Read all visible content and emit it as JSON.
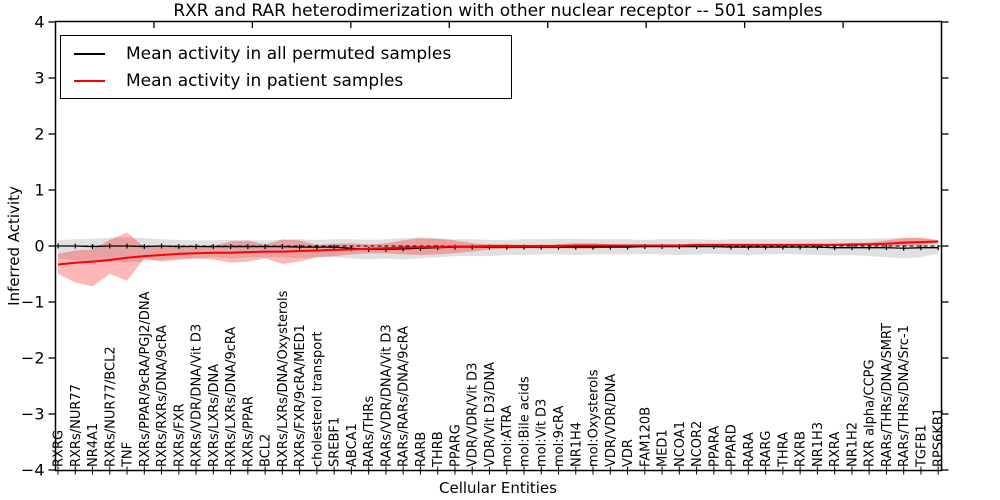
{
  "chart_data": {
    "type": "line",
    "title": "RXR and RAR heterodimerization with other nuclear receptor -- 501 samples",
    "xlabel": "Cellular Entities",
    "ylabel": "Inferred Activity",
    "ylim": [
      -4,
      4
    ],
    "grid": false,
    "legend_position": "upper left",
    "zero_line_style": "dashed",
    "ytick_values": [
      4,
      3,
      2,
      1,
      0,
      -1,
      -2,
      -3,
      -4
    ],
    "ytick_labels": [
      "4",
      "3",
      "2",
      "1",
      "0",
      "−1",
      "−2",
      "−3",
      "−4"
    ],
    "categories": [
      "RXRG",
      "RXRs/NUR77",
      "NR4A1",
      "RXRs/NUR77/BCL2",
      "TNF",
      "RXRs/PPAR/9cRA/PGJ2/DNA",
      "RXRs/RXRs/DNA/9cRA",
      "RXRs/FXR",
      "RXRs/VDR/DNA/Vit D3",
      "RXRs/LXRs/DNA",
      "RXRs/LXRs/DNA/9cRA",
      "RXRs/PPAR",
      "BCL2",
      "RXRs/LXRs/DNA/Oxysterols",
      "RXRs/FXR/9cRA/MED1",
      "cholesterol transport",
      "SREBF1",
      "ABCA1",
      "RARs/THRs",
      "RARs/VDR/DNA/Vit D3",
      "RARs/RARs/DNA/9cRA",
      "RARB",
      "THRB",
      "PPARG",
      "VDR/VDR/Vit D3",
      "VDR/Vit D3/DNA",
      "mol:ATRA",
      "mol:Bile acids",
      "mol:Vit D3",
      "mol:9cRA",
      "NR1H4",
      "mol:Oxysterols",
      "VDR/VDR/DNA",
      "VDR",
      "FAM120B",
      "MED1",
      "NCOA1",
      "NCOR2",
      "PPARA",
      "PPARD",
      "RARA",
      "RARG",
      "THRA",
      "RXRB",
      "NR1H3",
      "RXRA",
      "NR1H2",
      "RXR alpha/CCPG",
      "RARs/THRs/DNA/SMRT",
      "RARs/THRs/DNA/Src-1",
      "TGFB1",
      "RPS6KB1"
    ],
    "series": [
      {
        "name": "Mean activity in all permuted samples",
        "color": "#000000",
        "marker": "tick",
        "values": [
          0.0,
          0.0,
          -0.01,
          0.0,
          0.0,
          -0.01,
          0.0,
          -0.01,
          -0.01,
          -0.01,
          -0.01,
          -0.01,
          -0.01,
          -0.01,
          -0.02,
          -0.02,
          -0.02,
          -0.04,
          -0.06,
          -0.06,
          -0.05,
          -0.04,
          -0.03,
          -0.02,
          -0.02,
          -0.02,
          -0.02,
          -0.02,
          -0.02,
          -0.02,
          -0.02,
          -0.02,
          -0.02,
          -0.02,
          -0.01,
          -0.01,
          -0.01,
          -0.01,
          -0.01,
          -0.02,
          -0.02,
          -0.02,
          -0.02,
          -0.02,
          -0.02,
          -0.03,
          -0.03,
          -0.03,
          -0.03,
          -0.04,
          -0.03,
          -0.03
        ]
      },
      {
        "name": "Mean activity in patient samples",
        "color": "#ff0000",
        "marker": "none",
        "values": [
          -0.33,
          -0.3,
          -0.28,
          -0.25,
          -0.21,
          -0.18,
          -0.16,
          -0.14,
          -0.13,
          -0.12,
          -0.12,
          -0.11,
          -0.1,
          -0.1,
          -0.09,
          -0.08,
          -0.07,
          -0.06,
          -0.05,
          -0.04,
          -0.03,
          -0.02,
          -0.02,
          -0.01,
          -0.01,
          0.0,
          0.0,
          0.0,
          0.0,
          0.0,
          0.01,
          0.01,
          0.01,
          0.01,
          0.01,
          0.01,
          0.01,
          0.02,
          0.02,
          0.02,
          0.02,
          0.02,
          0.02,
          0.02,
          0.02,
          0.02,
          0.03,
          0.03,
          0.04,
          0.06,
          0.07,
          0.08
        ]
      }
    ],
    "bands": [
      {
        "name": "permuted-std-band",
        "color": "#000000",
        "opacity": 0.12,
        "upper": [
          0.1,
          0.12,
          0.13,
          0.15,
          0.15,
          0.14,
          0.12,
          0.11,
          0.1,
          0.1,
          0.11,
          0.1,
          0.1,
          0.11,
          0.12,
          0.11,
          0.12,
          0.12,
          0.11,
          0.12,
          0.14,
          0.15,
          0.14,
          0.12,
          0.12,
          0.11,
          0.11,
          0.12,
          0.12,
          0.13,
          0.13,
          0.12,
          0.12,
          0.12,
          0.11,
          0.12,
          0.12,
          0.12,
          0.11,
          0.12,
          0.12,
          0.12,
          0.12,
          0.12,
          0.12,
          0.13,
          0.13,
          0.13,
          0.14,
          0.15,
          0.14,
          0.1
        ],
        "lower": [
          -0.22,
          -0.26,
          -0.3,
          -0.28,
          -0.3,
          -0.28,
          -0.25,
          -0.22,
          -0.22,
          -0.2,
          -0.22,
          -0.2,
          -0.2,
          -0.2,
          -0.22,
          -0.2,
          -0.2,
          -0.22,
          -0.24,
          -0.22,
          -0.24,
          -0.22,
          -0.2,
          -0.18,
          -0.18,
          -0.18,
          -0.16,
          -0.16,
          -0.15,
          -0.15,
          -0.16,
          -0.15,
          -0.15,
          -0.15,
          -0.14,
          -0.15,
          -0.16,
          -0.15,
          -0.14,
          -0.15,
          -0.16,
          -0.15,
          -0.14,
          -0.15,
          -0.16,
          -0.17,
          -0.16,
          -0.18,
          -0.2,
          -0.22,
          -0.2,
          -0.13
        ]
      },
      {
        "name": "patient-std-band",
        "color": "#ff0000",
        "opacity": 0.28,
        "upper": [
          -0.14,
          -0.08,
          -0.06,
          0.11,
          0.24,
          -0.02,
          0.02,
          -0.02,
          -0.04,
          0.0,
          0.08,
          0.1,
          0.02,
          0.12,
          0.1,
          0.02,
          0.04,
          0.05,
          0.03,
          0.05,
          0.1,
          0.14,
          0.13,
          0.1,
          0.05,
          0.03,
          0.03,
          0.02,
          0.02,
          0.03,
          0.05,
          0.05,
          0.03,
          0.03,
          0.02,
          0.03,
          0.03,
          0.03,
          0.03,
          0.03,
          0.03,
          0.03,
          0.03,
          0.04,
          0.04,
          0.04,
          0.05,
          0.06,
          0.1,
          0.14,
          0.15,
          0.11
        ],
        "lower": [
          -0.5,
          -0.65,
          -0.72,
          -0.5,
          -0.62,
          -0.22,
          -0.28,
          -0.25,
          -0.22,
          -0.24,
          -0.3,
          -0.28,
          -0.22,
          -0.32,
          -0.28,
          -0.2,
          -0.18,
          -0.15,
          -0.13,
          -0.13,
          -0.15,
          -0.16,
          -0.15,
          -0.13,
          -0.1,
          -0.06,
          -0.05,
          -0.04,
          -0.04,
          -0.04,
          -0.05,
          -0.05,
          -0.03,
          -0.03,
          -0.02,
          -0.02,
          -0.02,
          -0.01,
          -0.01,
          -0.01,
          -0.01,
          -0.01,
          0.0,
          0.0,
          0.0,
          0.0,
          0.0,
          0.01,
          0.01,
          0.0,
          0.02,
          0.05
        ]
      }
    ]
  }
}
